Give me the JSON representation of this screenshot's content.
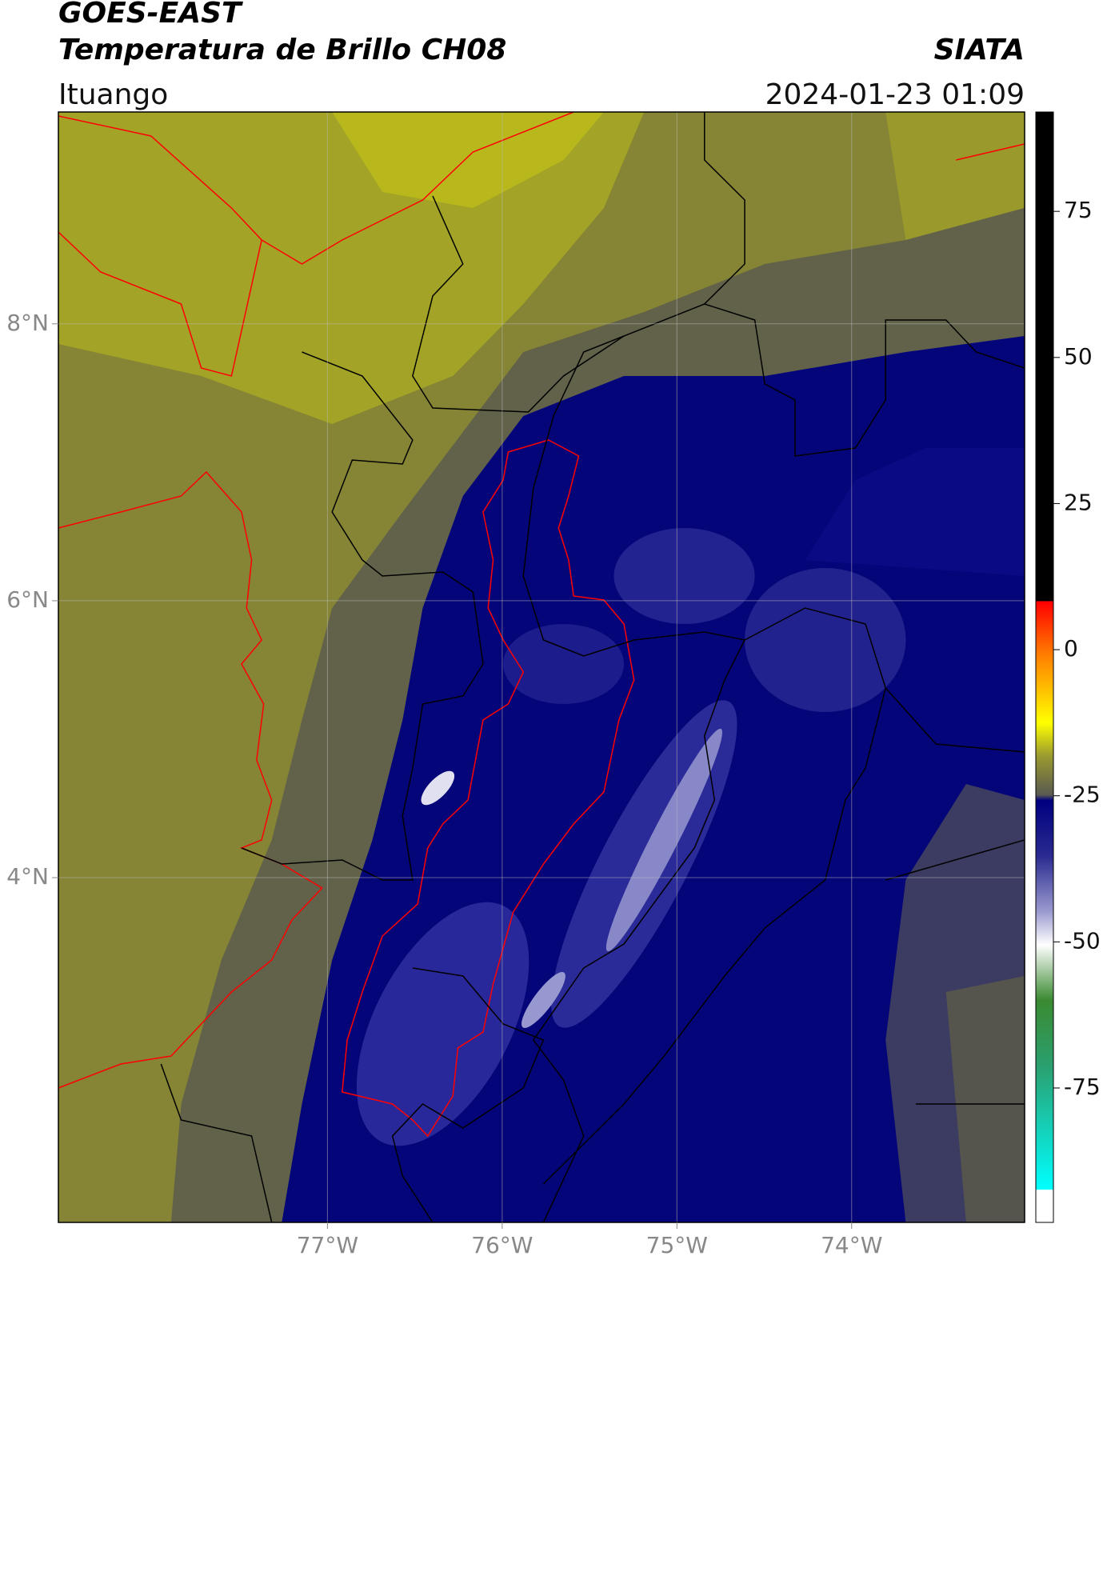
{
  "header": {
    "title": "GOES-EAST",
    "subtitle": "Temperatura de Brillo CH08",
    "source": "SIATA",
    "region": "Ituango",
    "datetime": "2024-01-23 01:09"
  },
  "map": {
    "xlim": [
      -78.54,
      -73.01
    ],
    "ylim": [
      1.51,
      9.53
    ],
    "xticks": [
      {
        "value": -77,
        "label": "77°W"
      },
      {
        "value": -76,
        "label": "76°W"
      },
      {
        "value": -75,
        "label": "75°W"
      },
      {
        "value": -74,
        "label": "74°W"
      }
    ],
    "yticks": [
      {
        "value": 8,
        "label": "8°N"
      },
      {
        "value": 6,
        "label": "6°N"
      },
      {
        "value": 4,
        "label": "4°N"
      }
    ]
  },
  "colorbar": {
    "lim": [
      -98,
      92
    ],
    "ticks": [
      75,
      50,
      25,
      0,
      -25,
      -50,
      -75
    ]
  }
}
